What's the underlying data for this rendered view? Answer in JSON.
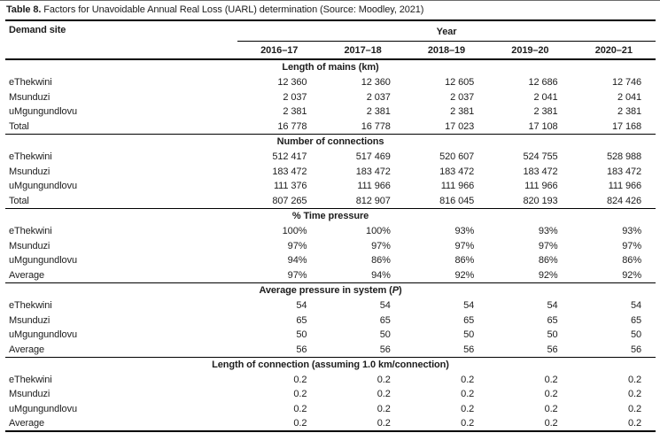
{
  "title": {
    "label": "Table 8.",
    "text": " Factors for Unavoidable Annual Real Loss (UARL) determination (Source: Moodley, 2021)"
  },
  "table": {
    "corner_header": "Demand site",
    "year_group_header": "Year",
    "year_columns": [
      "2016–17",
      "2017–18",
      "2018–19",
      "2019–20",
      "2020–21"
    ],
    "sections": [
      {
        "header": "Length of mains (km)",
        "rows": [
          {
            "label": "eThekwini",
            "values": [
              "12 360",
              "12 360",
              "12 605",
              "12 686",
              "12 746"
            ]
          },
          {
            "label": "Msunduzi",
            "values": [
              "2 037",
              "2 037",
              "2 037",
              "2 041",
              "2 041"
            ]
          },
          {
            "label": "uMgungundlovu",
            "values": [
              "2 381",
              "2 381",
              "2 381",
              "2 381",
              "2 381"
            ]
          },
          {
            "label": "Total",
            "values": [
              "16 778",
              "16 778",
              "17 023",
              "17 108",
              "17 168"
            ]
          }
        ]
      },
      {
        "header": "Number of connections",
        "rows": [
          {
            "label": "eThekwini",
            "values": [
              "512 417",
              "517 469",
              "520 607",
              "524 755",
              "528 988"
            ]
          },
          {
            "label": "Msunduzi",
            "values": [
              "183 472",
              "183 472",
              "183 472",
              "183 472",
              "183 472"
            ]
          },
          {
            "label": "uMgungundlovu",
            "values": [
              "111 376",
              "111 966",
              "111 966",
              "111 966",
              "111 966"
            ]
          },
          {
            "label": "Total",
            "values": [
              "807 265",
              "812 907",
              "816 045",
              "820 193",
              "824 426"
            ]
          }
        ]
      },
      {
        "header": "% Time pressure",
        "rows": [
          {
            "label": "eThekwini",
            "values": [
              "100%",
              "100%",
              "93%",
              "93%",
              "93%"
            ]
          },
          {
            "label": "Msunduzi",
            "values": [
              "97%",
              "97%",
              "97%",
              "97%",
              "97%"
            ]
          },
          {
            "label": "uMgungundlovu",
            "values": [
              "94%",
              "86%",
              "86%",
              "86%",
              "86%"
            ]
          },
          {
            "label": "Average",
            "values": [
              "97%",
              "94%",
              "92%",
              "92%",
              "92%"
            ]
          }
        ]
      },
      {
        "header": "Average pressure in system (P)",
        "header_parts": [
          {
            "text": "Average pressure in system ("
          },
          {
            "text": "P",
            "italic": true
          },
          {
            "text": ")"
          }
        ],
        "rows": [
          {
            "label": "eThekwini",
            "values": [
              "54",
              "54",
              "54",
              "54",
              "54"
            ]
          },
          {
            "label": "Msunduzi",
            "values": [
              "65",
              "65",
              "65",
              "65",
              "65"
            ]
          },
          {
            "label": "uMgungundlovu",
            "values": [
              "50",
              "50",
              "50",
              "50",
              "50"
            ]
          },
          {
            "label": "Average",
            "values": [
              "56",
              "56",
              "56",
              "56",
              "56"
            ]
          }
        ]
      },
      {
        "header": "Length of connection (assuming 1.0 km/connection)",
        "rows": [
          {
            "label": "eThekwini",
            "values": [
              "0.2",
              "0.2",
              "0.2",
              "0.2",
              "0.2"
            ]
          },
          {
            "label": "Msunduzi",
            "values": [
              "0.2",
              "0.2",
              "0.2",
              "0.2",
              "0.2"
            ]
          },
          {
            "label": "uMgungundlovu",
            "values": [
              "0.2",
              "0.2",
              "0.2",
              "0.2",
              "0.2"
            ]
          },
          {
            "label": "Average",
            "values": [
              "0.2",
              "0.2",
              "0.2",
              "0.2",
              "0.2"
            ]
          }
        ]
      }
    ]
  },
  "colors": {
    "text": "#1d1d1d",
    "rule": "#000000"
  }
}
